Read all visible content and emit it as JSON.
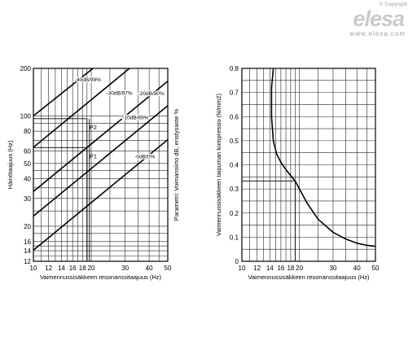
{
  "brand": {
    "copyright": "© Copyright",
    "logo": "elesa",
    "url": "www.elesa.com"
  },
  "chart_data": [
    {
      "type": "line",
      "xlabel": "Vaimennussisäkkeen resonanssitaajuus (Hz)",
      "ylabel": "Häiriötaajuus (Hz)",
      "right_label": "Parametri: Voimansiirto dB, eristysaste %",
      "xscale": "log",
      "yscale": "log",
      "xlim": [
        10,
        50
      ],
      "ylim": [
        12,
        200
      ],
      "x_ticks": [
        10,
        12,
        14,
        16,
        18,
        20,
        30,
        40,
        50
      ],
      "y_ticks": [
        12,
        14,
        16,
        20,
        30,
        40,
        50,
        60,
        80,
        100,
        200
      ],
      "series": [
        {
          "name": "-40dB/99%",
          "x": [
            10,
            20.4
          ],
          "y": [
            100,
            200
          ]
        },
        {
          "name": "-30dB/97%",
          "x": [
            10,
            31.6
          ],
          "y": [
            63.2,
            200
          ]
        },
        {
          "name": "-20dB/90%",
          "x": [
            10,
            50
          ],
          "y": [
            33.2,
            166
          ]
        },
        {
          "name": "-10dB/69%",
          "x": [
            10,
            50
          ],
          "y": [
            23.2,
            116
          ]
        },
        {
          "name": "-0dB/0%",
          "x": [
            10,
            50
          ],
          "y": [
            14.1,
            70.7
          ]
        }
      ],
      "annotations": [
        {
          "label": "P2",
          "x": 19,
          "y": 96
        },
        {
          "label": "P1",
          "x": 19,
          "y": 63
        }
      ],
      "grid": true
    },
    {
      "type": "line",
      "xlabel": "Vaimennussisäkkeen resonanssitaajuus (Hz)",
      "ylabel": "Vaimennussisäkkeen taipuman kompressio (N/mm2)",
      "xscale": "log",
      "xlim": [
        10,
        50
      ],
      "ylim": [
        0,
        0.8
      ],
      "x_ticks": [
        10,
        12,
        14,
        16,
        18,
        20,
        30,
        40,
        50
      ],
      "y_ticks": [
        0,
        0.1,
        0.2,
        0.3,
        0.4,
        0.5,
        0.6,
        0.7,
        0.8
      ],
      "series": [
        {
          "x": [
            14.6,
            14.3,
            14.3,
            14.6,
            15.2,
            16.0,
            17.0,
            18.0,
            19.0,
            20.0,
            22.0,
            25.0,
            30.0,
            35.0,
            40.0,
            45.0,
            50.0
          ],
          "y": [
            0.8,
            0.72,
            0.6,
            0.5,
            0.445,
            0.41,
            0.38,
            0.355,
            0.333,
            0.3,
            0.24,
            0.175,
            0.12,
            0.092,
            0.075,
            0.066,
            0.062
          ]
        }
      ],
      "reference": {
        "x": 19,
        "y": 0.333
      },
      "grid": true
    }
  ]
}
